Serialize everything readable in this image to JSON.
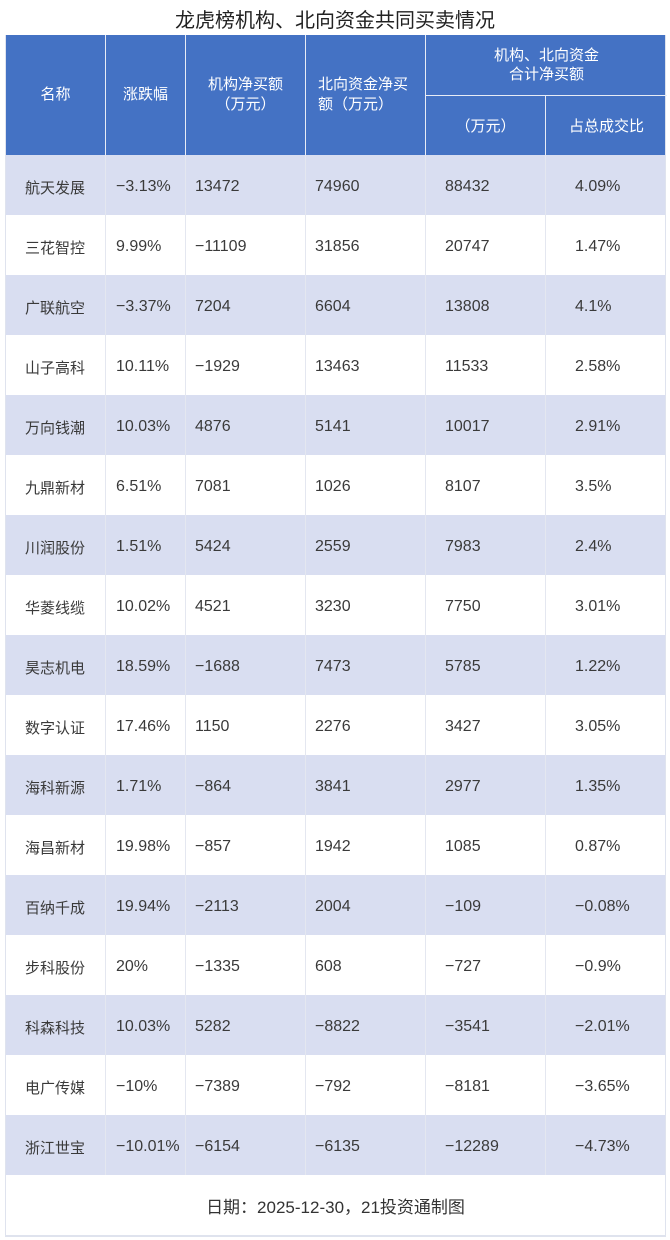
{
  "title": "龙虎榜机构、北向资金共同买卖情况",
  "colors": {
    "header_bg": "#4472C4",
    "stripe_bg": "#D9DEF1",
    "row_bg": "#FFFFFF"
  },
  "header": {
    "name": "名称",
    "change": "涨跌幅",
    "inst_net_line1": "机构净买额",
    "inst_net_line2": "（万元）",
    "north_net_line1": "北向资金净买",
    "north_net_line2": "额（万元）",
    "combined_line1": "机构、北向资金",
    "combined_line2": "合计净买额",
    "combined_unit": "（万元）",
    "combined_ratio": "占总成交比"
  },
  "rows": [
    {
      "name": "航天发展",
      "change": "−3.13%",
      "inst": "13472",
      "north": "74960",
      "total": "88432",
      "ratio": "4.09%"
    },
    {
      "name": "三花智控",
      "change": "9.99%",
      "inst": "−11109",
      "north": "31856",
      "total": "20747",
      "ratio": "1.47%"
    },
    {
      "name": "广联航空",
      "change": "−3.37%",
      "inst": "7204",
      "north": "6604",
      "total": "13808",
      "ratio": "4.1%"
    },
    {
      "name": "山子高科",
      "change": "10.11%",
      "inst": "−1929",
      "north": "13463",
      "total": "11533",
      "ratio": "2.58%"
    },
    {
      "name": "万向钱潮",
      "change": "10.03%",
      "inst": "4876",
      "north": "5141",
      "total": "10017",
      "ratio": "2.91%"
    },
    {
      "name": "九鼎新材",
      "change": "6.51%",
      "inst": "7081",
      "north": "1026",
      "total": "8107",
      "ratio": "3.5%"
    },
    {
      "name": "川润股份",
      "change": "1.51%",
      "inst": "5424",
      "north": "2559",
      "total": "7983",
      "ratio": "2.4%"
    },
    {
      "name": "华菱线缆",
      "change": "10.02%",
      "inst": "4521",
      "north": "3230",
      "total": "7750",
      "ratio": "3.01%"
    },
    {
      "name": "昊志机电",
      "change": "18.59%",
      "inst": "−1688",
      "north": "7473",
      "total": "5785",
      "ratio": "1.22%"
    },
    {
      "name": "数字认证",
      "change": "17.46%",
      "inst": "1150",
      "north": "2276",
      "total": "3427",
      "ratio": "3.05%"
    },
    {
      "name": "海科新源",
      "change": "1.71%",
      "inst": "−864",
      "north": "3841",
      "total": "2977",
      "ratio": "1.35%"
    },
    {
      "name": "海昌新材",
      "change": "19.98%",
      "inst": "−857",
      "north": "1942",
      "total": "1085",
      "ratio": "0.87%"
    },
    {
      "name": "百纳千成",
      "change": "19.94%",
      "inst": "−2113",
      "north": "2004",
      "total": "−109",
      "ratio": "−0.08%"
    },
    {
      "name": "步科股份",
      "change": "20%",
      "inst": "−1335",
      "north": "608",
      "total": "−727",
      "ratio": "−0.9%"
    },
    {
      "name": "科森科技",
      "change": "10.03%",
      "inst": "5282",
      "north": "−8822",
      "total": "−3541",
      "ratio": "−2.01%"
    },
    {
      "name": "电广传媒",
      "change": "−10%",
      "inst": "−7389",
      "north": "−792",
      "total": "−8181",
      "ratio": "−3.65%"
    },
    {
      "name": "浙江世宝",
      "change": "−10.01%",
      "inst": "−6154",
      "north": "−6135",
      "total": "−12289",
      "ratio": "−4.73%"
    }
  ],
  "footer": "日期：2025-12-30，21投资通制图"
}
